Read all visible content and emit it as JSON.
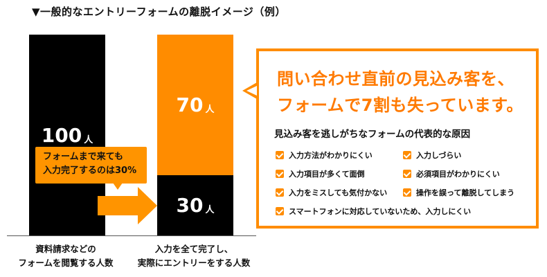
{
  "title": "▼一般的なエントリーフォームの離脱イメージ（例）",
  "chart_data": {
    "type": "bar",
    "unit": "人",
    "categories": [
      "資料請求などのフォームを閲覧する人数",
      "入力を全て完了し、実際にエントリーをする人数"
    ],
    "category_lines": [
      [
        "資料請求などの",
        "フォームを閲覧する人数"
      ],
      [
        "入力を全て完了し、",
        "実際にエントリーをする人数"
      ]
    ],
    "bars": [
      {
        "segments": [
          {
            "value": 100,
            "label": "100",
            "color": "#000000"
          }
        ]
      },
      {
        "segments": [
          {
            "value": 30,
            "label": "30",
            "color": "#000000"
          },
          {
            "value": 70,
            "label": "70",
            "color": "#ff8c00"
          }
        ]
      }
    ],
    "ylim": [
      0,
      100
    ],
    "annotation_lines": [
      "フォームまで来ても",
      "入力完了するのは30%"
    ]
  },
  "info_box": {
    "headline_lines": [
      "問い合わせ直前の見込み客を、",
      "フォームで7割も失っています。"
    ],
    "subheading": "見込み客を逃しがちなフォームの代表的な原因",
    "reasons": [
      "入力方法がわかりにくい",
      "入力しづらい",
      "入力項目が多くて面倒",
      "必須項目がわかりにくい",
      "入力をミスしても気付かない",
      "操作を誤って離脱してしまう",
      "スマートフォンに対応していないため、入力しにくい"
    ],
    "accent_color": "#ff8c00",
    "check_icon": "checkbox-check-icon"
  }
}
